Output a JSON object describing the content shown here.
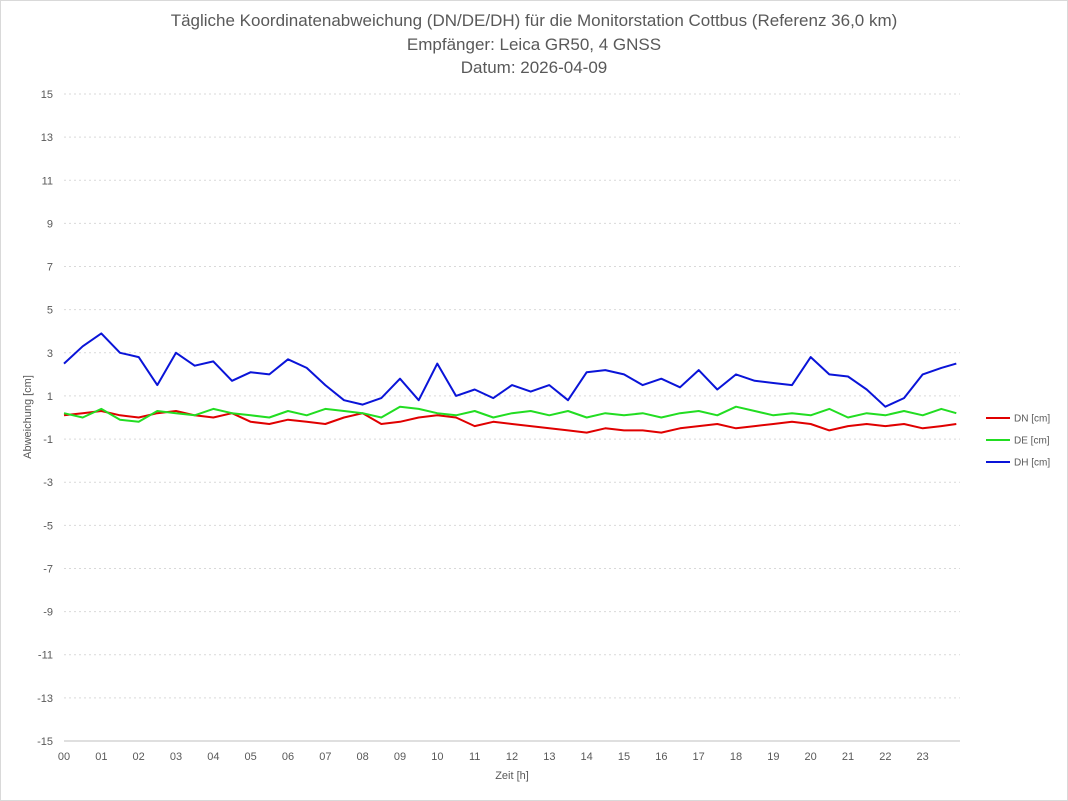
{
  "chart_data": {
    "type": "line",
    "title": "Tägliche Koordinatenabweichung (DN/DE/DH) für die Monitorstation Cottbus (Referenz 36,0 km)",
    "subtitle": "Empfänger: Leica GR50, 4 GNSS",
    "date_line": "Datum: 2026-04-09",
    "xlabel": "Zeit [h]",
    "ylabel": "Abweichung [cm]",
    "xlim": [
      0,
      24
    ],
    "ylim": [
      -15,
      15
    ],
    "x_ticks": [
      "00",
      "01",
      "02",
      "03",
      "04",
      "05",
      "06",
      "07",
      "08",
      "09",
      "10",
      "11",
      "12",
      "13",
      "14",
      "15",
      "16",
      "17",
      "18",
      "19",
      "20",
      "21",
      "22",
      "23"
    ],
    "y_ticks": [
      "15",
      "13",
      "11",
      "9",
      "7",
      "5",
      "3",
      "1",
      "-1",
      "-3",
      "-5",
      "-7",
      "-9",
      "-11",
      "-13",
      "-15"
    ],
    "grid": true,
    "legend_position": "right",
    "x": [
      0.0,
      0.5,
      1.0,
      1.5,
      2.0,
      2.5,
      3.0,
      3.5,
      4.0,
      4.5,
      5.0,
      5.5,
      6.0,
      6.5,
      7.0,
      7.5,
      8.0,
      8.5,
      9.0,
      9.5,
      10.0,
      10.5,
      11.0,
      11.5,
      12.0,
      12.5,
      13.0,
      13.5,
      14.0,
      14.5,
      15.0,
      15.5,
      16.0,
      16.5,
      17.0,
      17.5,
      18.0,
      18.5,
      19.0,
      19.5,
      20.0,
      20.5,
      21.0,
      21.5,
      22.0,
      22.5,
      23.0,
      23.5,
      23.9
    ],
    "series": [
      {
        "name": "DN [cm]",
        "color": "#e00000",
        "values": [
          0.1,
          0.2,
          0.3,
          0.1,
          0.0,
          0.2,
          0.3,
          0.1,
          0.0,
          0.2,
          -0.2,
          -0.3,
          -0.1,
          -0.2,
          -0.3,
          0.0,
          0.2,
          -0.3,
          -0.2,
          0.0,
          0.1,
          0.0,
          -0.4,
          -0.2,
          -0.3,
          -0.4,
          -0.5,
          -0.6,
          -0.7,
          -0.5,
          -0.6,
          -0.6,
          -0.7,
          -0.5,
          -0.4,
          -0.3,
          -0.5,
          -0.4,
          -0.3,
          -0.2,
          -0.3,
          -0.6,
          -0.4,
          -0.3,
          -0.4,
          -0.3,
          -0.5,
          -0.4,
          -0.3
        ]
      },
      {
        "name": "DE [cm]",
        "color": "#22dd22",
        "values": [
          0.2,
          0.0,
          0.4,
          -0.1,
          -0.2,
          0.3,
          0.2,
          0.1,
          0.4,
          0.2,
          0.1,
          0.0,
          0.3,
          0.1,
          0.4,
          0.3,
          0.2,
          0.0,
          0.5,
          0.4,
          0.2,
          0.1,
          0.3,
          0.0,
          0.2,
          0.3,
          0.1,
          0.3,
          0.0,
          0.2,
          0.1,
          0.2,
          0.0,
          0.2,
          0.3,
          0.1,
          0.5,
          0.3,
          0.1,
          0.2,
          0.1,
          0.4,
          0.0,
          0.2,
          0.1,
          0.3,
          0.1,
          0.4,
          0.2
        ]
      },
      {
        "name": "DH [cm]",
        "color": "#0a14d8",
        "values": [
          2.5,
          3.3,
          3.9,
          3.0,
          2.8,
          1.5,
          3.0,
          2.4,
          2.6,
          1.7,
          2.1,
          2.0,
          2.7,
          2.3,
          1.5,
          0.8,
          0.6,
          0.9,
          1.8,
          0.8,
          2.5,
          1.0,
          1.3,
          0.9,
          1.5,
          1.2,
          1.5,
          0.8,
          2.1,
          2.2,
          2.0,
          1.5,
          1.8,
          1.4,
          2.2,
          1.3,
          2.0,
          1.7,
          1.6,
          1.5,
          2.8,
          2.0,
          1.9,
          1.3,
          0.5,
          0.9,
          2.0,
          2.3,
          2.5
        ]
      }
    ]
  }
}
